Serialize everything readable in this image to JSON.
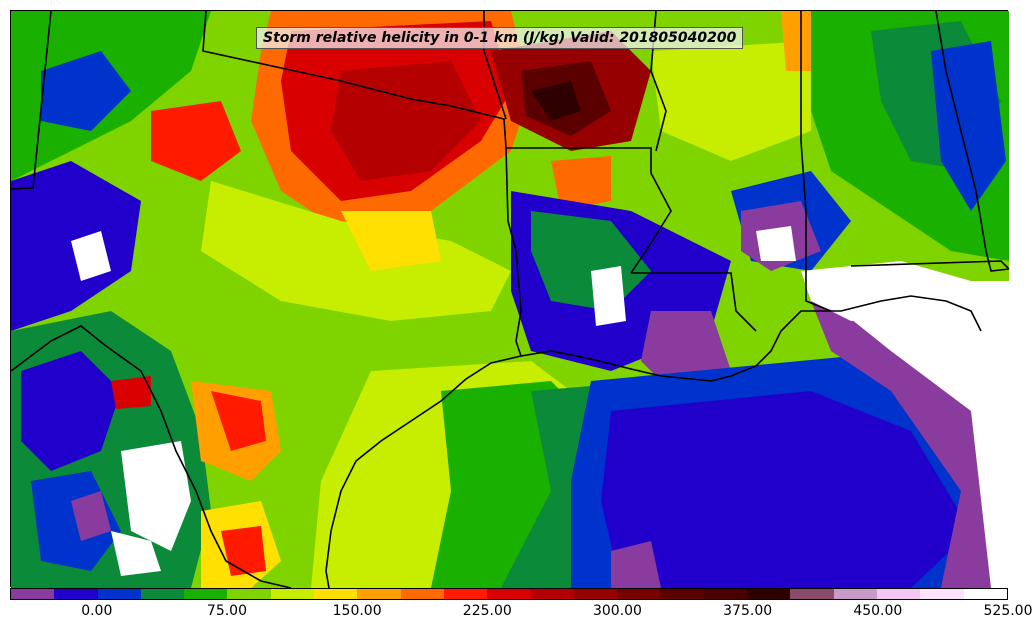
{
  "map": {
    "title": "Storm relative helicity in 0-1 km (J/kg) Valid: 201805040200"
  },
  "colorbar": {
    "colors": [
      "#8a3c9e",
      "#2200cc",
      "#0033cc",
      "#0b8a3a",
      "#19b000",
      "#7fd400",
      "#c7ee00",
      "#ffe000",
      "#ffa000",
      "#ff6a00",
      "#ff1a00",
      "#d80000",
      "#b40000",
      "#960000",
      "#780000",
      "#5a0000",
      "#4a0000",
      "#2e0000",
      "#8c4a6a",
      "#c79ac7",
      "#f3c6f3",
      "#fde3fd",
      "#ffffff"
    ],
    "ticks": [
      "0.00",
      "75.00",
      "150.00",
      "225.00",
      "300.00",
      "375.00",
      "450.00",
      "525.00"
    ]
  }
}
